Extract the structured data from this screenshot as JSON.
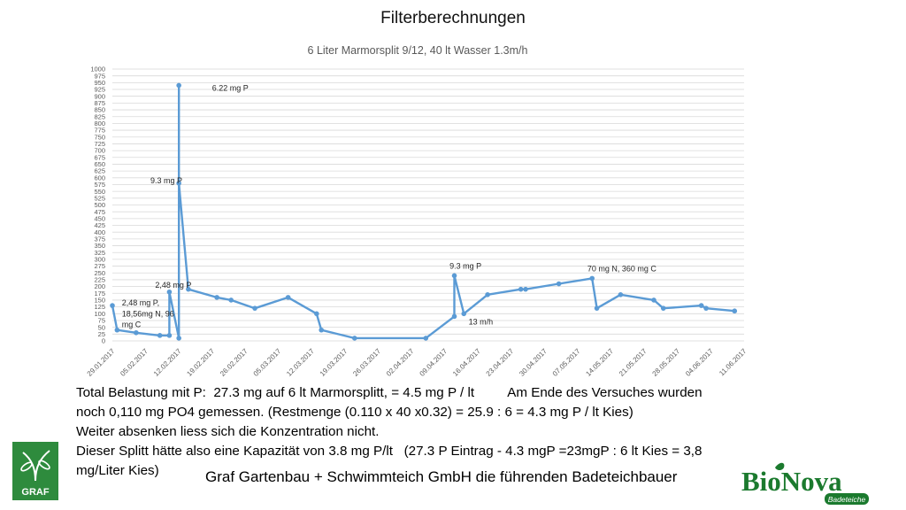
{
  "page": {
    "title": "Filterberechnungen",
    "body_lines": [
      "Total Belastung mit P:  27.3 mg auf 6 lt Marmorsplitt, = 4.5 mg P / lt         Am Ende des Versuches wurden",
      "noch 0,110 mg PO4 gemessen. (Restmenge (0.110 x 40 x0.32) = 25.9 : 6 = 4.3 mg P / lt Kies)",
      "Weiter absenken liess sich die Konzentration nicht.",
      "Dieser Splitt hätte also eine Kapazität von 3.8 mg P/lt   (27.3 P Eintrag - 4.3 mgP =23mgP : 6 lt Kies = 3,8",
      "mg/Liter Kies)"
    ],
    "footer": "Graf Gartenbau + Schwimmteich GmbH die führenden Badeteichbauer",
    "logos": {
      "graf": "GRAF",
      "bionova": "BioNova",
      "bionova_sub": "Badeteiche"
    }
  },
  "colors": {
    "line": "#5b9bd5",
    "grid": "#d9d9d9",
    "axis_text": "#595959",
    "graf_green": "#2e8b3d",
    "bionova_green": "#1b7a2e"
  },
  "chart_data": {
    "type": "line",
    "title": "6 Liter Marmorsplit 9/12, 40 lt Wasser  1.3m/h",
    "xlabel": "",
    "ylabel": "",
    "ylim": [
      0,
      1000
    ],
    "ytick_step": 25,
    "xlim": [
      "29.01.2017",
      "11.06.2017"
    ],
    "x_ticks": [
      "29.01.2017",
      "05.02.2017",
      "12.02.2017",
      "19.02.2017",
      "26.02.2017",
      "05.03.2017",
      "12.03.2017",
      "19.03.2017",
      "26.03.2017",
      "02.04.2017",
      "09.04.2017",
      "16.04.2017",
      "23.04.2017",
      "30.04.2017",
      "07.05.2017",
      "14.05.2017",
      "21.05.2017",
      "28.05.2017",
      "04.06.2017",
      "11.06.2017"
    ],
    "grid": true,
    "legend": "none",
    "series": [
      {
        "points": [
          [
            "29.01.2017",
            130
          ],
          [
            "30.01.2017",
            40
          ],
          [
            "03.02.2017",
            30
          ],
          [
            "08.02.2017",
            20
          ],
          [
            "10.02.2017",
            20
          ],
          [
            "10.02.2017",
            180
          ],
          [
            "12.02.2017",
            10
          ],
          [
            "12.02.2017",
            940
          ],
          [
            "12.02.2017",
            580
          ],
          [
            "14.02.2017",
            190
          ],
          [
            "20.02.2017",
            160
          ],
          [
            "23.02.2017",
            150
          ],
          [
            "28.02.2017",
            120
          ],
          [
            "07.03.2017",
            160
          ],
          [
            "13.03.2017",
            100
          ],
          [
            "14.03.2017",
            40
          ],
          [
            "21.03.2017",
            10
          ],
          [
            "05.04.2017",
            10
          ],
          [
            "11.04.2017",
            90
          ],
          [
            "11.04.2017",
            240
          ],
          [
            "13.04.2017",
            100
          ],
          [
            "18.04.2017",
            170
          ],
          [
            "25.04.2017",
            190
          ],
          [
            "26.04.2017",
            190
          ],
          [
            "03.05.2017",
            210
          ],
          [
            "10.05.2017",
            230
          ],
          [
            "11.05.2017",
            120
          ],
          [
            "16.05.2017",
            170
          ],
          [
            "23.05.2017",
            150
          ],
          [
            "25.05.2017",
            120
          ],
          [
            "02.06.2017",
            130
          ],
          [
            "03.06.2017",
            120
          ],
          [
            "09.06.2017",
            110
          ]
        ]
      }
    ],
    "annotations": [
      {
        "text": "6.22 mg P",
        "x": "19.02.2017",
        "y": 920
      },
      {
        "text": "9.3 mg P",
        "x": "06.02.2017",
        "y": 580
      },
      {
        "text": "2,48 mg P",
        "x": "07.02.2017",
        "y": 195
      },
      {
        "text": "2,48 mg P,",
        "x": "31.01.2017",
        "y": 130
      },
      {
        "text": "18,56mg N, 96",
        "x": "31.01.2017",
        "y": 90
      },
      {
        "text": "mg C",
        "x": "31.01.2017",
        "y": 50
      },
      {
        "text": "9.3 mg P",
        "x": "10.04.2017",
        "y": 265
      },
      {
        "text": "13 m/h",
        "x": "14.04.2017",
        "y": 60
      },
      {
        "text": "70 mg N, 360 mg C",
        "x": "09.05.2017",
        "y": 255
      }
    ]
  }
}
